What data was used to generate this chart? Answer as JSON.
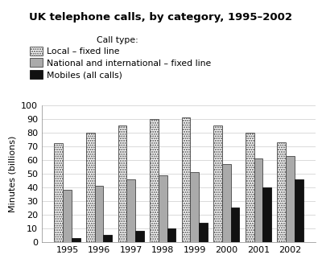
{
  "title": "UK telephone calls, by category, 1995–2002",
  "ylabel": "Minutes (billions)",
  "years": [
    1995,
    1996,
    1997,
    1998,
    1999,
    2000,
    2001,
    2002
  ],
  "local_fixed": [
    72,
    80,
    85,
    90,
    91,
    85,
    80,
    73
  ],
  "national_fixed": [
    38,
    41,
    46,
    49,
    51,
    57,
    61,
    63
  ],
  "mobiles": [
    3,
    5,
    8,
    10,
    14,
    25,
    40,
    46
  ],
  "color_local": "#ffffff",
  "color_national": "#aaaaaa",
  "color_mobiles": "#111111",
  "ylim": [
    0,
    100
  ],
  "yticks": [
    0,
    10,
    20,
    30,
    40,
    50,
    60,
    70,
    80,
    90,
    100
  ],
  "legend_title": "Call type:  ",
  "legend_local": "Local – fixed line",
  "legend_national": "National and international – fixed line",
  "legend_mobiles": "Mobiles (all calls)",
  "bar_width": 0.27,
  "background_color": "#ffffff"
}
